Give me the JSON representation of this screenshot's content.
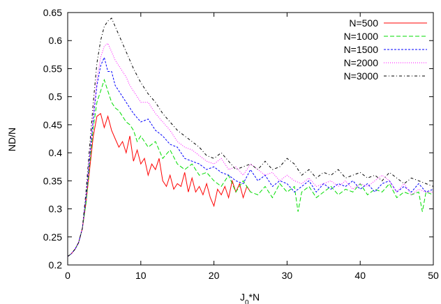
{
  "chart_data": {
    "type": "line",
    "title": "",
    "xlabel": "J",
    "xlabel_sub": "0",
    "xlabel_suffix": "*N",
    "ylabel": "ND/N",
    "xlim": [
      0,
      50
    ],
    "ylim": [
      0.2,
      0.65
    ],
    "xticks": [
      0,
      10,
      20,
      30,
      40,
      50
    ],
    "xtick_labels": [
      "0",
      "10",
      "20",
      "30",
      "40",
      "50"
    ],
    "yticks": [
      0.2,
      0.25,
      0.3,
      0.35,
      0.4,
      0.45,
      0.5,
      0.55,
      0.6,
      0.65
    ],
    "ytick_labels": [
      "0.2",
      "0.25",
      "0.3",
      "0.35",
      "0.4",
      "0.45",
      "0.5",
      "0.55",
      "0.6",
      "0.65"
    ],
    "grid": false,
    "legend_position": "top-right",
    "series": [
      {
        "name": "N=500",
        "color": "#ff0000",
        "dash": "solid",
        "x": [
          0,
          0.5,
          1,
          1.5,
          2,
          2.5,
          3,
          3.5,
          4,
          4.5,
          5,
          5.5,
          6,
          6.5,
          7,
          7.5,
          8,
          8.5,
          9,
          9.5,
          10,
          10.5,
          11,
          11.5,
          12,
          12.5,
          13,
          13.5,
          14,
          14.5,
          15,
          15.5,
          16,
          16.5,
          17,
          17.5,
          18,
          18.5,
          19,
          19.5,
          20,
          20.5,
          21,
          21.5,
          22,
          22.5,
          23,
          23.5,
          24,
          24.5,
          25
        ],
        "y": [
          0.215,
          0.22,
          0.228,
          0.24,
          0.265,
          0.31,
          0.37,
          0.43,
          0.465,
          0.47,
          0.445,
          0.465,
          0.44,
          0.425,
          0.41,
          0.42,
          0.4,
          0.43,
          0.385,
          0.405,
          0.38,
          0.39,
          0.36,
          0.38,
          0.37,
          0.39,
          0.35,
          0.34,
          0.36,
          0.335,
          0.345,
          0.34,
          0.365,
          0.33,
          0.355,
          0.33,
          0.34,
          0.325,
          0.345,
          0.32,
          0.305,
          0.335,
          0.325,
          0.34,
          0.32,
          0.35,
          0.33,
          0.345,
          0.32,
          0.34,
          0.33
        ]
      },
      {
        "name": "N=1000",
        "color": "#00dd00",
        "dash": "6,3",
        "x": [
          0,
          0.5,
          1,
          1.5,
          2,
          2.5,
          3,
          3.5,
          4,
          4.5,
          5,
          5.5,
          6,
          6.5,
          7,
          7.5,
          8,
          8.5,
          9,
          9.5,
          10,
          11,
          12,
          13,
          14,
          15,
          16,
          17,
          18,
          19,
          20,
          21,
          22,
          23,
          24,
          25,
          26,
          27,
          28,
          29,
          30,
          31,
          31.5,
          32,
          33,
          34,
          35,
          36,
          37,
          38,
          39,
          40,
          41,
          42,
          43,
          44,
          45,
          46,
          47,
          48,
          48.5,
          49,
          50
        ],
        "y": [
          0.215,
          0.22,
          0.228,
          0.24,
          0.265,
          0.31,
          0.38,
          0.445,
          0.49,
          0.51,
          0.53,
          0.51,
          0.49,
          0.48,
          0.475,
          0.465,
          0.455,
          0.45,
          0.44,
          0.42,
          0.43,
          0.41,
          0.42,
          0.39,
          0.405,
          0.38,
          0.37,
          0.38,
          0.36,
          0.365,
          0.35,
          0.34,
          0.36,
          0.33,
          0.35,
          0.33,
          0.325,
          0.34,
          0.32,
          0.345,
          0.33,
          0.34,
          0.295,
          0.33,
          0.34,
          0.32,
          0.33,
          0.34,
          0.325,
          0.335,
          0.33,
          0.345,
          0.325,
          0.335,
          0.33,
          0.345,
          0.32,
          0.33,
          0.325,
          0.33,
          0.295,
          0.33,
          0.325
        ]
      },
      {
        "name": "N=1500",
        "color": "#0000ff",
        "dash": "3,2",
        "x": [
          0,
          0.5,
          1,
          1.5,
          2,
          2.5,
          3,
          3.5,
          4,
          4.5,
          5,
          5.5,
          6,
          6.5,
          7,
          7.5,
          8,
          8.5,
          9,
          10,
          11,
          12,
          13,
          14,
          15,
          16,
          17,
          18,
          19,
          20,
          21,
          22,
          23,
          24,
          25,
          26,
          27,
          28,
          29,
          30,
          31,
          32,
          33,
          34,
          35,
          36,
          37,
          38,
          39,
          40,
          41,
          42,
          43,
          44,
          45,
          46,
          47,
          48,
          49,
          50
        ],
        "y": [
          0.215,
          0.22,
          0.228,
          0.24,
          0.265,
          0.32,
          0.39,
          0.46,
          0.52,
          0.555,
          0.57,
          0.545,
          0.545,
          0.52,
          0.51,
          0.5,
          0.49,
          0.48,
          0.47,
          0.455,
          0.46,
          0.44,
          0.43,
          0.415,
          0.41,
          0.39,
          0.385,
          0.38,
          0.37,
          0.375,
          0.365,
          0.36,
          0.35,
          0.345,
          0.37,
          0.35,
          0.36,
          0.34,
          0.35,
          0.345,
          0.33,
          0.34,
          0.35,
          0.33,
          0.345,
          0.335,
          0.345,
          0.34,
          0.35,
          0.335,
          0.345,
          0.33,
          0.345,
          0.35,
          0.33,
          0.34,
          0.33,
          0.345,
          0.33,
          0.335
        ]
      },
      {
        "name": "N=2000",
        "color": "#ff00ff",
        "dash": "1,2",
        "x": [
          0,
          0.5,
          1,
          1.5,
          2,
          2.5,
          3,
          3.5,
          4,
          4.5,
          5,
          5.5,
          6,
          6.5,
          7,
          7.5,
          8,
          8.5,
          9,
          10,
          11,
          12,
          13,
          14,
          15,
          16,
          17,
          18,
          19,
          20,
          21,
          22,
          23,
          24,
          25,
          26,
          27,
          28,
          29,
          30,
          31,
          32,
          33,
          34,
          35,
          36,
          37,
          38,
          39,
          40,
          41,
          42,
          43,
          44,
          45,
          46,
          47,
          48,
          49,
          50
        ],
        "y": [
          0.215,
          0.22,
          0.228,
          0.24,
          0.265,
          0.32,
          0.395,
          0.47,
          0.53,
          0.57,
          0.59,
          0.595,
          0.58,
          0.565,
          0.555,
          0.545,
          0.535,
          0.52,
          0.51,
          0.49,
          0.49,
          0.47,
          0.455,
          0.44,
          0.42,
          0.41,
          0.405,
          0.395,
          0.385,
          0.38,
          0.39,
          0.37,
          0.375,
          0.36,
          0.38,
          0.37,
          0.36,
          0.365,
          0.35,
          0.36,
          0.35,
          0.345,
          0.355,
          0.34,
          0.345,
          0.35,
          0.34,
          0.35,
          0.335,
          0.345,
          0.34,
          0.35,
          0.36,
          0.35,
          0.33,
          0.345,
          0.325,
          0.335,
          0.33,
          0.33
        ]
      },
      {
        "name": "N=3000",
        "color": "#000000",
        "dash": "4,3,1,3",
        "x": [
          0,
          0.5,
          1,
          1.5,
          2,
          2.5,
          3,
          3.5,
          4,
          4.5,
          5,
          5.5,
          6,
          6.5,
          7,
          7.5,
          8,
          8.5,
          9,
          10,
          11,
          12,
          13,
          14,
          15,
          16,
          17,
          18,
          19,
          20,
          21,
          22,
          23,
          24,
          25,
          26,
          27,
          28,
          29,
          30,
          31,
          32,
          33,
          34,
          35,
          36,
          37,
          38,
          39,
          40,
          41,
          42,
          43,
          44,
          45,
          46,
          47,
          48,
          49,
          50
        ],
        "y": [
          0.215,
          0.22,
          0.228,
          0.24,
          0.265,
          0.33,
          0.41,
          0.49,
          0.56,
          0.6,
          0.625,
          0.635,
          0.64,
          0.625,
          0.61,
          0.595,
          0.58,
          0.565,
          0.55,
          0.525,
          0.505,
          0.49,
          0.47,
          0.455,
          0.44,
          0.43,
          0.42,
          0.41,
          0.395,
          0.39,
          0.4,
          0.385,
          0.37,
          0.375,
          0.38,
          0.37,
          0.385,
          0.37,
          0.375,
          0.39,
          0.38,
          0.36,
          0.37,
          0.355,
          0.365,
          0.36,
          0.37,
          0.355,
          0.36,
          0.365,
          0.355,
          0.36,
          0.35,
          0.365,
          0.355,
          0.345,
          0.355,
          0.35,
          0.345,
          0.34
        ]
      }
    ]
  }
}
